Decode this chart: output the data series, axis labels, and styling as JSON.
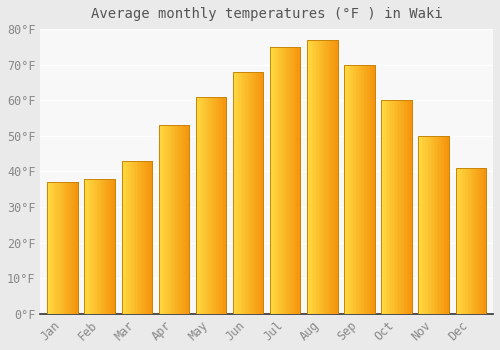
{
  "title": "Average monthly temperatures (°F ) in Waki",
  "months": [
    "Jan",
    "Feb",
    "Mar",
    "Apr",
    "May",
    "Jun",
    "Jul",
    "Aug",
    "Sep",
    "Oct",
    "Nov",
    "Dec"
  ],
  "values": [
    37,
    38,
    43,
    53,
    61,
    68,
    75,
    77,
    70,
    60,
    50,
    41
  ],
  "bar_color_left": "#FFBE00",
  "bar_color_right": "#F5920A",
  "bar_edge_color": "#C8850A",
  "background_color": "#EAEAEA",
  "plot_bg_color": "#F8F8F8",
  "grid_color": "#FFFFFF",
  "ylim": [
    0,
    80
  ],
  "yticks": [
    0,
    10,
    20,
    30,
    40,
    50,
    60,
    70,
    80
  ],
  "ytick_labels": [
    "0°F",
    "10°F",
    "20°F",
    "30°F",
    "40°F",
    "50°F",
    "60°F",
    "70°F",
    "80°F"
  ],
  "title_fontsize": 10,
  "tick_fontsize": 8.5,
  "font_color": "#888888",
  "title_color": "#555555",
  "bar_width": 0.82,
  "figsize": [
    5.0,
    3.5
  ],
  "dpi": 100
}
